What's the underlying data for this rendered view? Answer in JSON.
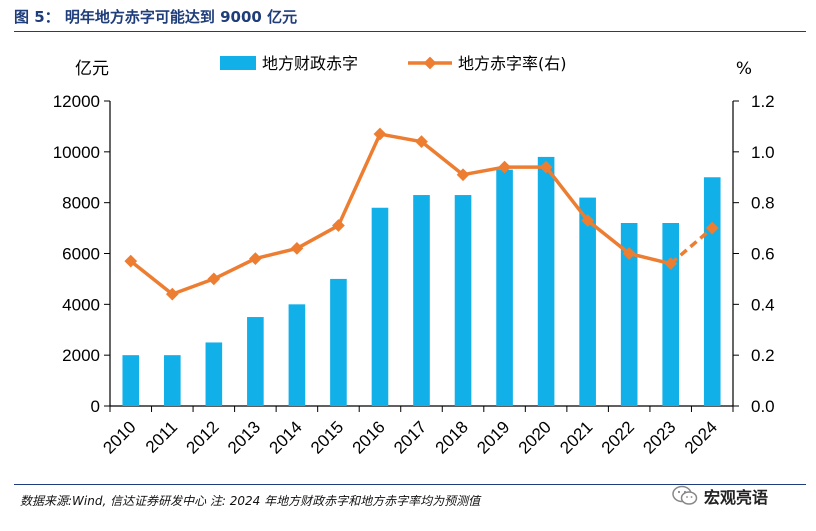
{
  "title": "图 5： 明年地方赤字可能达到 9000 亿元",
  "source_note": "数据来源:Wind, 信达证券研发中心   注: 2024 年地方财政赤字和地方赤字率均为预测值",
  "watermark": "宏观亮语",
  "colors": {
    "bar": "#12b0e8",
    "line": "#ed7d31",
    "title": "#1f3d7a"
  },
  "chart_data": {
    "type": "bar",
    "categories": [
      "2010",
      "2011",
      "2012",
      "2013",
      "2014",
      "2015",
      "2016",
      "2017",
      "2018",
      "2019",
      "2020",
      "2021",
      "2022",
      "2023",
      "2024"
    ],
    "left_unit": "亿元",
    "right_unit": "%",
    "ylim": [
      0,
      12000
    ],
    "y2lim": [
      0,
      1.2
    ],
    "y_ticks": [
      "0",
      "2000",
      "4000",
      "6000",
      "8000",
      "10000",
      "12000"
    ],
    "y2_ticks": [
      "0.0",
      "0.2",
      "0.4",
      "0.6",
      "0.8",
      "1.0",
      "1.2"
    ],
    "legend_position": "top-center",
    "series": [
      {
        "name": "地方财政赤字",
        "kind": "bar",
        "axis": "left",
        "values": [
          2000,
          2000,
          2500,
          3500,
          4000,
          5000,
          7800,
          8300,
          8300,
          9300,
          9800,
          8200,
          7200,
          7200,
          9000
        ]
      },
      {
        "name": "地方赤字率(右)",
        "kind": "line",
        "axis": "right",
        "values": [
          0.57,
          0.44,
          0.5,
          0.58,
          0.62,
          0.71,
          1.07,
          1.04,
          0.91,
          0.94,
          0.94,
          0.73,
          0.6,
          0.56,
          0.7
        ],
        "dashed_last_segment": true
      }
    ]
  }
}
